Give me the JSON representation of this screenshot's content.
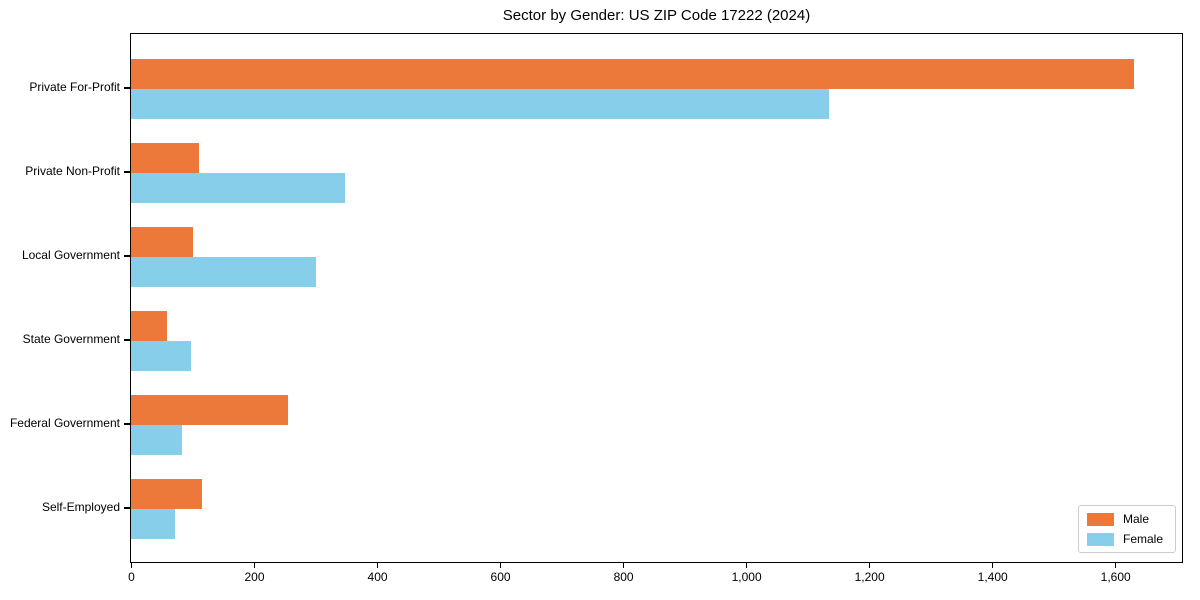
{
  "chart_data": {
    "type": "bar",
    "orientation": "horizontal",
    "title": "Sector by Gender: US ZIP Code 17222 (2024)",
    "categories": [
      "Private For-Profit",
      "Private Non-Profit",
      "Local Government",
      "State Government",
      "Federal Government",
      "Self-Employed"
    ],
    "series": [
      {
        "name": "Male",
        "color": "#EC7839",
        "values": [
          1630,
          110,
          100,
          59,
          255,
          115
        ]
      },
      {
        "name": "Female",
        "color": "#87CEEB",
        "values": [
          1135,
          348,
          300,
          97,
          83,
          72
        ]
      }
    ],
    "xlim": [
      0,
      1707
    ],
    "xticks": [
      0,
      200,
      400,
      600,
      800,
      1000,
      1200,
      1400,
      1600
    ],
    "xtick_labels": [
      "0",
      "200",
      "400",
      "600",
      "800",
      "1,000",
      "1,200",
      "1,400",
      "1,600"
    ],
    "xlabel": "",
    "ylabel": "",
    "grid": false,
    "legend_position": "lower right"
  }
}
